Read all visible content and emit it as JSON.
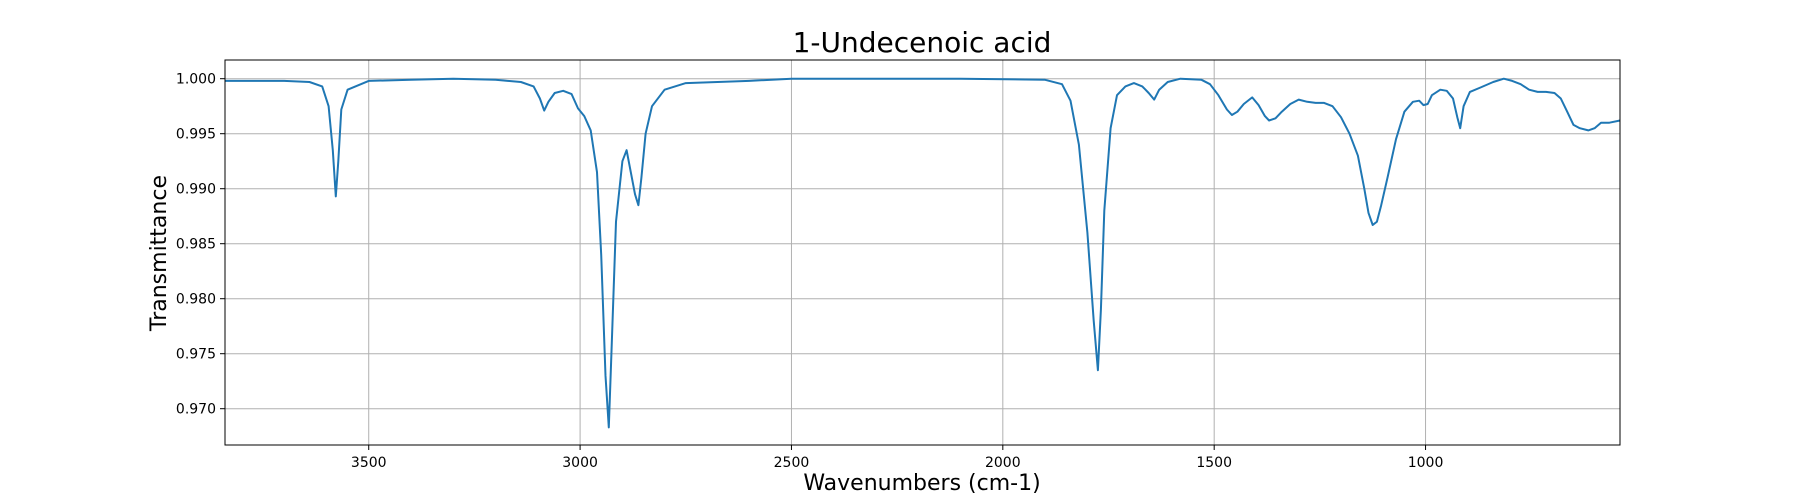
{
  "chart_data": {
    "type": "line",
    "title": "1-Undecenoic acid",
    "xlabel": "Wavenumbers (cm-1)",
    "ylabel": "Transmittance",
    "xlim": [
      3840,
      540
    ],
    "ylim": [
      0.9667,
      1.0017
    ],
    "x_ticks": [
      3500,
      3000,
      2500,
      2000,
      1500,
      1000
    ],
    "y_ticks": [
      0.97,
      0.975,
      0.98,
      0.985,
      0.99,
      0.995,
      1.0
    ],
    "grid": true,
    "line_color": "#1f77b4",
    "series": [
      {
        "points": [
          [
            3840,
            0.9998
          ],
          [
            3700,
            0.9998
          ],
          [
            3640,
            0.9997
          ],
          [
            3610,
            0.9993
          ],
          [
            3595,
            0.9975
          ],
          [
            3585,
            0.9935
          ],
          [
            3578,
            0.9893
          ],
          [
            3572,
            0.9925
          ],
          [
            3565,
            0.9972
          ],
          [
            3550,
            0.999
          ],
          [
            3500,
            0.9998
          ],
          [
            3400,
            0.9999
          ],
          [
            3300,
            1.0
          ],
          [
            3200,
            0.9999
          ],
          [
            3140,
            0.9997
          ],
          [
            3110,
            0.9993
          ],
          [
            3095,
            0.9982
          ],
          [
            3085,
            0.9971
          ],
          [
            3075,
            0.9979
          ],
          [
            3060,
            0.9987
          ],
          [
            3040,
            0.9989
          ],
          [
            3020,
            0.9986
          ],
          [
            3005,
            0.9973
          ],
          [
            2990,
            0.9966
          ],
          [
            2975,
            0.9953
          ],
          [
            2960,
            0.9915
          ],
          [
            2950,
            0.984
          ],
          [
            2940,
            0.973
          ],
          [
            2932,
            0.9683
          ],
          [
            2925,
            0.976
          ],
          [
            2915,
            0.987
          ],
          [
            2900,
            0.9925
          ],
          [
            2890,
            0.9935
          ],
          [
            2880,
            0.9915
          ],
          [
            2870,
            0.9895
          ],
          [
            2862,
            0.9885
          ],
          [
            2855,
            0.991
          ],
          [
            2845,
            0.995
          ],
          [
            2830,
            0.9975
          ],
          [
            2800,
            0.999
          ],
          [
            2750,
            0.9996
          ],
          [
            2600,
            0.9998
          ],
          [
            2500,
            1.0
          ],
          [
            2300,
            1.0
          ],
          [
            2100,
            1.0
          ],
          [
            1900,
            0.9999
          ],
          [
            1860,
            0.9995
          ],
          [
            1840,
            0.998
          ],
          [
            1820,
            0.994
          ],
          [
            1800,
            0.986
          ],
          [
            1785,
            0.978
          ],
          [
            1775,
            0.9735
          ],
          [
            1768,
            0.979
          ],
          [
            1760,
            0.988
          ],
          [
            1745,
            0.9955
          ],
          [
            1730,
            0.9985
          ],
          [
            1710,
            0.9993
          ],
          [
            1690,
            0.9996
          ],
          [
            1670,
            0.9993
          ],
          [
            1655,
            0.9987
          ],
          [
            1642,
            0.9981
          ],
          [
            1630,
            0.999
          ],
          [
            1610,
            0.9997
          ],
          [
            1580,
            1.0
          ],
          [
            1530,
            0.9999
          ],
          [
            1510,
            0.9995
          ],
          [
            1490,
            0.9985
          ],
          [
            1470,
            0.9972
          ],
          [
            1458,
            0.9967
          ],
          [
            1445,
            0.997
          ],
          [
            1430,
            0.9977
          ],
          [
            1410,
            0.9983
          ],
          [
            1395,
            0.9976
          ],
          [
            1380,
            0.9966
          ],
          [
            1370,
            0.9962
          ],
          [
            1355,
            0.9964
          ],
          [
            1340,
            0.997
          ],
          [
            1320,
            0.9977
          ],
          [
            1300,
            0.9981
          ],
          [
            1280,
            0.9979
          ],
          [
            1260,
            0.9978
          ],
          [
            1240,
            0.9978
          ],
          [
            1220,
            0.9975
          ],
          [
            1200,
            0.9965
          ],
          [
            1180,
            0.995
          ],
          [
            1160,
            0.993
          ],
          [
            1145,
            0.99
          ],
          [
            1135,
            0.9878
          ],
          [
            1125,
            0.9867
          ],
          [
            1115,
            0.987
          ],
          [
            1105,
            0.9885
          ],
          [
            1090,
            0.991
          ],
          [
            1070,
            0.9945
          ],
          [
            1050,
            0.997
          ],
          [
            1030,
            0.9979
          ],
          [
            1015,
            0.998
          ],
          [
            1005,
            0.9976
          ],
          [
            995,
            0.9977
          ],
          [
            985,
            0.9985
          ],
          [
            965,
            0.999
          ],
          [
            950,
            0.9989
          ],
          [
            935,
            0.9982
          ],
          [
            925,
            0.9965
          ],
          [
            918,
            0.9955
          ],
          [
            910,
            0.9975
          ],
          [
            895,
            0.9988
          ],
          [
            870,
            0.9992
          ],
          [
            840,
            0.9997
          ],
          [
            815,
            1.0
          ],
          [
            795,
            0.9998
          ],
          [
            775,
            0.9995
          ],
          [
            755,
            0.999
          ],
          [
            735,
            0.9988
          ],
          [
            715,
            0.9988
          ],
          [
            695,
            0.9987
          ],
          [
            680,
            0.9982
          ],
          [
            665,
            0.997
          ],
          [
            650,
            0.9958
          ],
          [
            635,
            0.9955
          ],
          [
            615,
            0.9953
          ],
          [
            600,
            0.9955
          ],
          [
            585,
            0.996
          ],
          [
            565,
            0.996
          ],
          [
            540,
            0.9962
          ]
        ]
      }
    ]
  }
}
